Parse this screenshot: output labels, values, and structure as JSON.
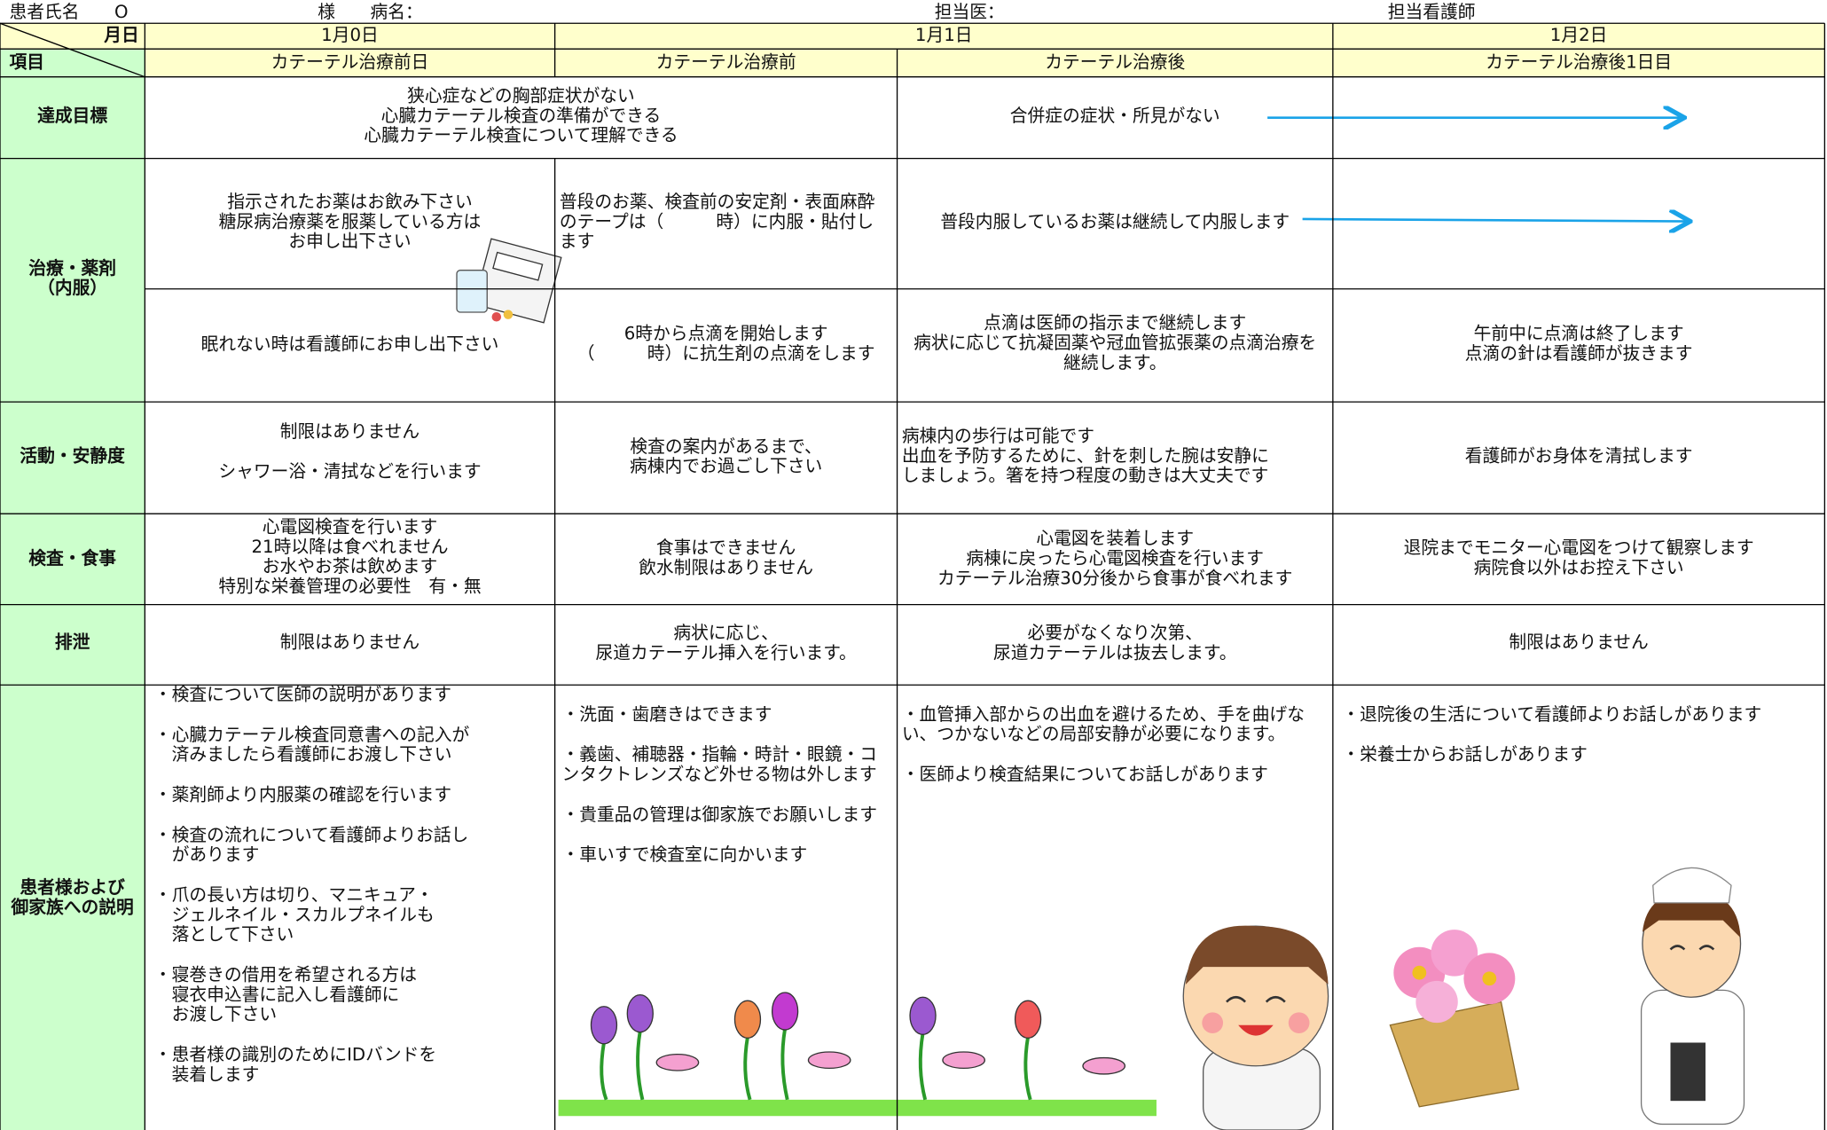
{
  "header": {
    "patient": "患者氏名　　O",
    "name_label": "様　　病名：",
    "doctor": "担当医：",
    "nurse": "担当看護師"
  },
  "table": {
    "date_label": "月日",
    "item_label": "項目",
    "dates": [
      "1月0日",
      "1月1日",
      "1月2日"
    ],
    "phases": [
      "カテーテル治療前日",
      "カテーテル治療前",
      "カテーテル治療後",
      "カテーテル治療後1日目"
    ],
    "rows": [
      {
        "label": [
          "達成目標"
        ],
        "cells": [
          [
            [
              "狭心症などの胸部症状がない",
              "心臓カテーテル検査の準備ができる",
              "心臓カテーテル検査について理解できる"
            ]
          ],
          [
            [
              "合併症の症状・所見がない"
            ]
          ]
        ]
      },
      {
        "label": [
          "治療・薬剤",
          "（内服）"
        ],
        "cells": [
          [
            [
              "指示されたお薬はお飲み下さい",
              "糖尿病治療薬を服薬している方は",
              "お申し出下さい"
            ]
          ],
          [
            [
              "普段のお薬、検査前の安定剤・表面麻酔",
              "のテープは（　　　時）に内服・貼付し",
              "ます"
            ]
          ],
          [
            [
              "普段内服しているお薬は継続して内服します"
            ]
          ],
          [
            [
              "眠れない時は看護師にお申し出下さい"
            ]
          ],
          [
            [
              "6時から点滴を開始します",
              "（　　　時）に抗生剤の点滴をします"
            ]
          ],
          [
            [
              "点滴は医師の指示まで継続します",
              "病状に応じて抗凝固薬や冠血管拡張薬の点滴治療を",
              "継続します。"
            ]
          ],
          [
            [
              "午前中に点滴は終了します",
              "点滴の針は看護師が抜きます"
            ]
          ]
        ]
      },
      {
        "label": [
          "活動・安静度"
        ],
        "cells": [
          [
            [
              "制限はありません"
            ],
            [
              "シャワー浴・清拭などを行います"
            ]
          ],
          [
            [
              "検査の案内があるまで、",
              "病棟内でお過ごし下さい"
            ]
          ],
          [
            [
              "病棟内の歩行は可能です",
              "出血を予防するために、針を刺した腕は安静に",
              "しましょう。箸を持つ程度の動きは大丈夫です"
            ]
          ],
          [
            [
              "看護師がお身体を清拭します"
            ]
          ]
        ]
      },
      {
        "label": [
          "検査・食事"
        ],
        "cells": [
          [
            [
              "心電図検査を行います",
              "21時以降は食べれません",
              "お水やお茶は飲めます",
              "特別な栄養管理の必要性　有・無"
            ]
          ],
          [
            [
              "食事はできません",
              "飲水制限はありません"
            ]
          ],
          [
            [
              "心電図を装着します",
              "病棟に戻ったら心電図検査を行います",
              "カテーテル治療30分後から食事が食べれます"
            ]
          ],
          [
            [
              "退院までモニター心電図をつけて観察します",
              "病院食以外はお控え下さい"
            ]
          ]
        ]
      },
      {
        "label": [
          "排泄"
        ],
        "cells": [
          [
            [
              "制限はありません"
            ]
          ],
          [
            [
              "病状に応じ、",
              "尿道カテーテル挿入を行います。"
            ]
          ],
          [
            [
              "必要がなくなり次第、",
              "尿道カテーテルは抜去します。"
            ]
          ],
          [
            [
              "制限はありません"
            ]
          ]
        ]
      },
      {
        "label": [
          "患者様および",
          "御家族への説明"
        ],
        "cells": [
          [
            [
              "・検査について医師の説明があります"
            ],
            [
              "・心臓カテーテル検査同意書への記入が",
              "　済みましたら看護師にお渡し下さい"
            ],
            [
              "・薬剤師より内服薬の確認を行います"
            ],
            [
              "・検査の流れについて看護師よりお話し",
              "　があります"
            ],
            [
              "・爪の長い方は切り、マニキュア・",
              "　ジェルネイル・スカルプネイルも",
              "　落として下さい"
            ],
            [
              "・寝巻きの借用を希望される方は",
              "　寝衣申込書に記入し看護師に",
              "　お渡し下さい"
            ],
            [
              "・患者様の識別のためにIDバンドを",
              "　装着します"
            ]
          ],
          [
            [
              "・洗面・歯磨きはできます"
            ],
            [
              "・義歯、補聴器・指輪・時計・眼鏡・コ",
              "ンタクトレンズなど外せる物は外します"
            ],
            [
              "・貴重品の管理は御家族でお願いします"
            ],
            [
              "・車いすで検査室に向かいます"
            ]
          ],
          [
            [
              "・血管挿入部からの出血を避けるため、手を曲げな",
              "い、つかないなどの局部安静が必要になります。"
            ],
            [
              "・医師より検査結果についてお話しがあります"
            ]
          ],
          [
            [
              "・退院後の生活について看護師よりお話しがあります"
            ],
            [
              "・栄養士からお話しがあります"
            ]
          ]
        ]
      }
    ]
  }
}
